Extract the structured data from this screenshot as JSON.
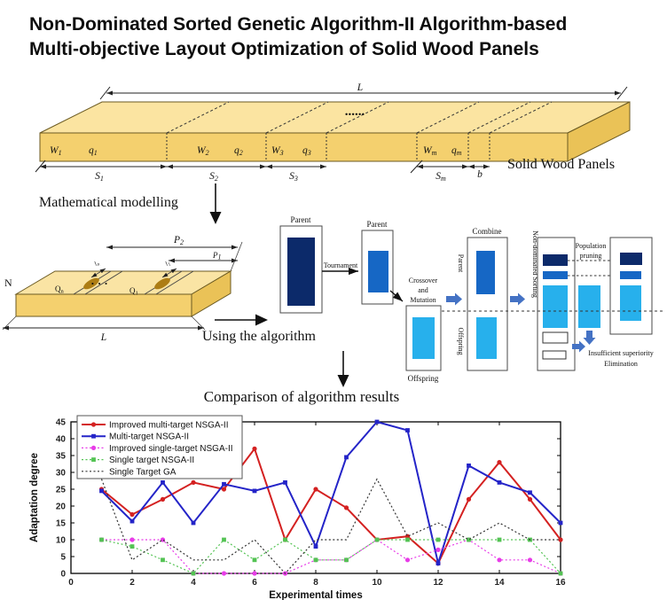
{
  "title": {
    "line1": "Non-Dominated Sorted Genetic Algorithm-II Algorithm-based",
    "line2": "Multi-objective Layout Optimization of Solid Wood Panels"
  },
  "wood_panel": {
    "caption": "Solid Wood Panels",
    "length_label": "L",
    "dots": "......",
    "thickness_label": "b",
    "segments": [
      {
        "w": "W",
        "w_sub": "1",
        "q": "q",
        "q_sub": "1",
        "s": "S",
        "s_sub": "1"
      },
      {
        "w": "W",
        "w_sub": "2",
        "q": "q",
        "q_sub": "2",
        "s": "S",
        "s_sub": "2"
      },
      {
        "w": "W",
        "w_sub": "3",
        "q": "q",
        "q_sub": "3",
        "s": "S",
        "s_sub": "3"
      },
      {
        "w": "W",
        "w_sub": "m",
        "q": "q",
        "q_sub": "m",
        "s": "S",
        "s_sub": "m"
      }
    ]
  },
  "arrows": {
    "modelling_label": "Mathematical modelling",
    "algorithm_label": "Using the algorithm"
  },
  "model_panel": {
    "n_label": "N",
    "length_label": "L",
    "dots": "· · ·",
    "p2": {
      "main": "P",
      "sub": "2"
    },
    "p1": {
      "main": "P",
      "sub": "1"
    },
    "qn": {
      "main": "Q",
      "sub": "n"
    },
    "q1": {
      "main": "Q",
      "sub": "1"
    },
    "ln": {
      "main": "l",
      "sub": "n"
    },
    "l1": {
      "main": "l",
      "sub": "1"
    }
  },
  "flow": {
    "parent1_label": "Parent",
    "parent2_label": "Parent",
    "tournament_label": "Tournament",
    "crossover_lines": [
      "Crossover",
      "and",
      "Mutation"
    ],
    "offspring_label": "Offspring",
    "combine_label": "Combine",
    "combine_parent_label": "Parent",
    "combine_offspring_label": "Offspring",
    "sorting_label": "Non-dominated Sorting",
    "pruning_line1": "Population",
    "pruning_line2": "pruning",
    "elimination_line1": "Insufficient superiority",
    "elimination_line2": "Elimination",
    "colors": {
      "navy": "#0c2a6a",
      "blue": "#1667c5",
      "light_blue": "#27b0ec",
      "arrow": "#4472c4"
    }
  },
  "chart_data": {
    "type": "line",
    "title": "Comparison of algorithm results",
    "xlabel": "Experimental times",
    "ylabel": "Adaptation degree",
    "xlim": [
      0,
      16
    ],
    "ylim": [
      0,
      45
    ],
    "xticks": [
      0,
      2,
      4,
      6,
      8,
      10,
      12,
      14,
      16
    ],
    "yticks": [
      0,
      5,
      10,
      15,
      20,
      25,
      30,
      35,
      40,
      45
    ],
    "grid": false,
    "legend_position": "top-left",
    "x": [
      1,
      2,
      3,
      4,
      5,
      6,
      7,
      8,
      9,
      10,
      11,
      12,
      13,
      14,
      15,
      16
    ],
    "series": [
      {
        "name": "Improved multi-target NSGA-II",
        "color": "#d42121",
        "line": "solid",
        "marker": "circle",
        "values": [
          25,
          17.5,
          22,
          27,
          25,
          37,
          10,
          25,
          19.5,
          10,
          11,
          3,
          22,
          33,
          22,
          10
        ]
      },
      {
        "name": "Multi-target NSGA-II",
        "color": "#2424c8",
        "line": "solid",
        "marker": "square",
        "values": [
          24.5,
          15.5,
          27,
          15,
          26.5,
          24.5,
          27,
          8,
          34.5,
          45,
          42.5,
          3,
          32,
          27,
          24,
          15
        ]
      },
      {
        "name": "Improved single-target NSGA-II",
        "color": "#e83ce8",
        "line": "dotted",
        "marker": "circle",
        "values": [
          10,
          10,
          10,
          0,
          0,
          0,
          0,
          4,
          4,
          10,
          4,
          7,
          10,
          4,
          4,
          0
        ]
      },
      {
        "name": "Single target NSGA-II",
        "color": "#53c353",
        "line": "dotted",
        "marker": "square",
        "values": [
          10,
          8,
          4,
          0,
          10,
          4,
          10,
          4,
          4,
          10,
          10,
          10,
          10,
          10,
          10,
          0
        ]
      },
      {
        "name": "Single Target GA",
        "color": "#333333",
        "line": "dotted",
        "marker": "none",
        "values": [
          28,
          4,
          10,
          4,
          4,
          10,
          0,
          10,
          10,
          28,
          11,
          15,
          10,
          15,
          10,
          10
        ]
      }
    ]
  }
}
